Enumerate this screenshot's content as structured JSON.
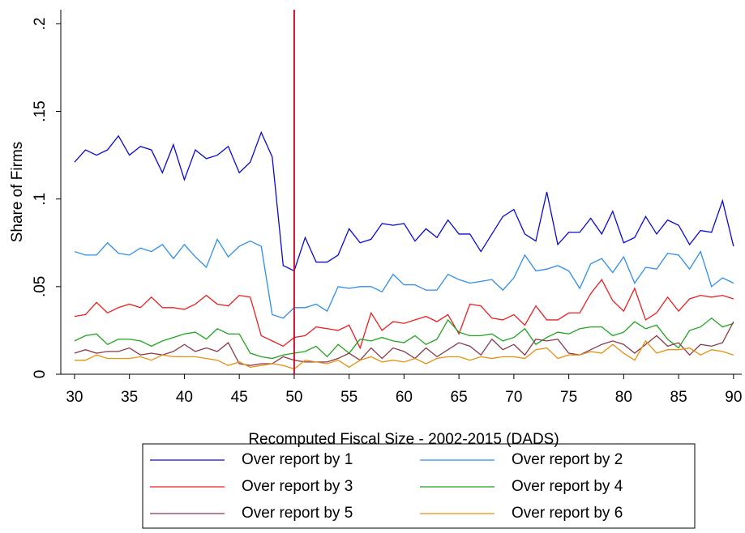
{
  "chart_data": {
    "type": "line",
    "x_label": "Recomputed Fiscal Size - 2002-2015 (DADS)",
    "y_label": "Share of Firms",
    "x": [
      30,
      31,
      32,
      33,
      34,
      35,
      36,
      37,
      38,
      39,
      40,
      41,
      42,
      43,
      44,
      45,
      46,
      47,
      48,
      49,
      50,
      51,
      52,
      53,
      54,
      55,
      56,
      57,
      58,
      59,
      60,
      61,
      62,
      63,
      64,
      65,
      66,
      67,
      68,
      69,
      70,
      71,
      72,
      73,
      74,
      75,
      76,
      77,
      78,
      79,
      80,
      81,
      82,
      83,
      84,
      85,
      86,
      87,
      88,
      89,
      90
    ],
    "series": [
      {
        "name": "Over report by 1",
        "color": "#0a0ad2",
        "values": [
          0.121,
          0.128,
          0.125,
          0.128,
          0.136,
          0.125,
          0.13,
          0.128,
          0.115,
          0.131,
          0.111,
          0.128,
          0.123,
          0.125,
          0.13,
          0.115,
          0.121,
          0.138,
          0.124,
          0.062,
          0.059,
          0.078,
          0.064,
          0.064,
          0.068,
          0.083,
          0.075,
          0.077,
          0.086,
          0.085,
          0.086,
          0.076,
          0.083,
          0.078,
          0.088,
          0.08,
          0.08,
          0.07,
          0.08,
          0.09,
          0.094,
          0.08,
          0.076,
          0.104,
          0.074,
          0.081,
          0.081,
          0.089,
          0.08,
          0.093,
          0.075,
          0.078,
          0.09,
          0.08,
          0.088,
          0.085,
          0.074,
          0.082,
          0.081,
          0.099,
          0.073
        ]
      },
      {
        "name": "Over report by 2",
        "color": "#2e8ee8",
        "values": [
          0.07,
          0.068,
          0.068,
          0.075,
          0.069,
          0.068,
          0.072,
          0.07,
          0.074,
          0.066,
          0.074,
          0.067,
          0.061,
          0.077,
          0.067,
          0.073,
          0.076,
          0.073,
          0.034,
          0.032,
          0.038,
          0.038,
          0.04,
          0.036,
          0.05,
          0.049,
          0.05,
          0.05,
          0.047,
          0.057,
          0.051,
          0.051,
          0.048,
          0.048,
          0.057,
          0.054,
          0.052,
          0.053,
          0.054,
          0.048,
          0.055,
          0.068,
          0.059,
          0.06,
          0.062,
          0.059,
          0.049,
          0.063,
          0.066,
          0.058,
          0.067,
          0.052,
          0.061,
          0.06,
          0.069,
          0.068,
          0.06,
          0.07,
          0.05,
          0.055,
          0.052
        ]
      },
      {
        "name": "Over report by 3",
        "color": "#e8201f",
        "values": [
          0.033,
          0.034,
          0.041,
          0.035,
          0.038,
          0.04,
          0.038,
          0.044,
          0.038,
          0.038,
          0.037,
          0.04,
          0.045,
          0.04,
          0.039,
          0.045,
          0.044,
          0.022,
          0.019,
          0.016,
          0.021,
          0.022,
          0.027,
          0.026,
          0.025,
          0.028,
          0.015,
          0.035,
          0.025,
          0.03,
          0.029,
          0.031,
          0.033,
          0.03,
          0.034,
          0.023,
          0.04,
          0.039,
          0.032,
          0.031,
          0.034,
          0.028,
          0.039,
          0.031,
          0.031,
          0.035,
          0.035,
          0.046,
          0.054,
          0.042,
          0.036,
          0.049,
          0.031,
          0.035,
          0.044,
          0.036,
          0.043,
          0.045,
          0.044,
          0.045,
          0.043
        ]
      },
      {
        "name": "Over report by 4",
        "color": "#1fa51f",
        "values": [
          0.019,
          0.022,
          0.023,
          0.017,
          0.02,
          0.02,
          0.019,
          0.016,
          0.019,
          0.021,
          0.023,
          0.024,
          0.02,
          0.026,
          0.023,
          0.023,
          0.012,
          0.01,
          0.009,
          0.011,
          0.012,
          0.013,
          0.016,
          0.01,
          0.017,
          0.012,
          0.02,
          0.019,
          0.021,
          0.019,
          0.018,
          0.022,
          0.017,
          0.02,
          0.031,
          0.024,
          0.022,
          0.022,
          0.023,
          0.019,
          0.021,
          0.026,
          0.017,
          0.021,
          0.024,
          0.023,
          0.026,
          0.027,
          0.027,
          0.022,
          0.024,
          0.03,
          0.026,
          0.028,
          0.02,
          0.015,
          0.025,
          0.027,
          0.032,
          0.027,
          0.029
        ]
      },
      {
        "name": "Over report by 5",
        "color": "#8b3a4a",
        "values": [
          0.012,
          0.014,
          0.012,
          0.013,
          0.013,
          0.015,
          0.011,
          0.012,
          0.011,
          0.013,
          0.017,
          0.013,
          0.015,
          0.013,
          0.018,
          0.006,
          0.005,
          0.006,
          0.006,
          0.01,
          0.008,
          0.007,
          0.007,
          0.007,
          0.009,
          0.012,
          0.008,
          0.015,
          0.009,
          0.015,
          0.013,
          0.009,
          0.015,
          0.01,
          0.014,
          0.018,
          0.016,
          0.011,
          0.02,
          0.014,
          0.017,
          0.011,
          0.02,
          0.019,
          0.02,
          0.012,
          0.011,
          0.014,
          0.017,
          0.019,
          0.017,
          0.012,
          0.017,
          0.022,
          0.016,
          0.018,
          0.011,
          0.017,
          0.016,
          0.018,
          0.03
        ]
      },
      {
        "name": "Over report by 6",
        "color": "#e8900e",
        "values": [
          0.008,
          0.008,
          0.011,
          0.009,
          0.009,
          0.009,
          0.01,
          0.008,
          0.011,
          0.01,
          0.01,
          0.01,
          0.009,
          0.008,
          0.005,
          0.007,
          0.004,
          0.005,
          0.006,
          0.005,
          0.003,
          0.008,
          0.007,
          0.006,
          0.008,
          0.004,
          0.008,
          0.01,
          0.007,
          0.008,
          0.007,
          0.009,
          0.006,
          0.009,
          0.01,
          0.01,
          0.008,
          0.01,
          0.009,
          0.01,
          0.01,
          0.009,
          0.014,
          0.015,
          0.009,
          0.011,
          0.011,
          0.013,
          0.012,
          0.017,
          0.012,
          0.008,
          0.019,
          0.012,
          0.014,
          0.014,
          0.015,
          0.011,
          0.014,
          0.013,
          0.011
        ]
      }
    ],
    "vline": 50,
    "vline_color": "#c8102e",
    "xlim": [
      28.75,
      90.75
    ],
    "ylim": [
      0,
      0.208
    ],
    "xticks": [
      30,
      35,
      40,
      45,
      50,
      55,
      60,
      65,
      70,
      75,
      80,
      85,
      90
    ],
    "yticks": [
      0,
      {
        "value": 0.05,
        "label": ".05"
      },
      {
        "value": 0.1,
        "label": ".1"
      },
      {
        "value": 0.15,
        "label": ".15"
      },
      {
        "value": 0.2,
        "label": ".2"
      }
    ],
    "grid": false,
    "legend": "bottom"
  }
}
